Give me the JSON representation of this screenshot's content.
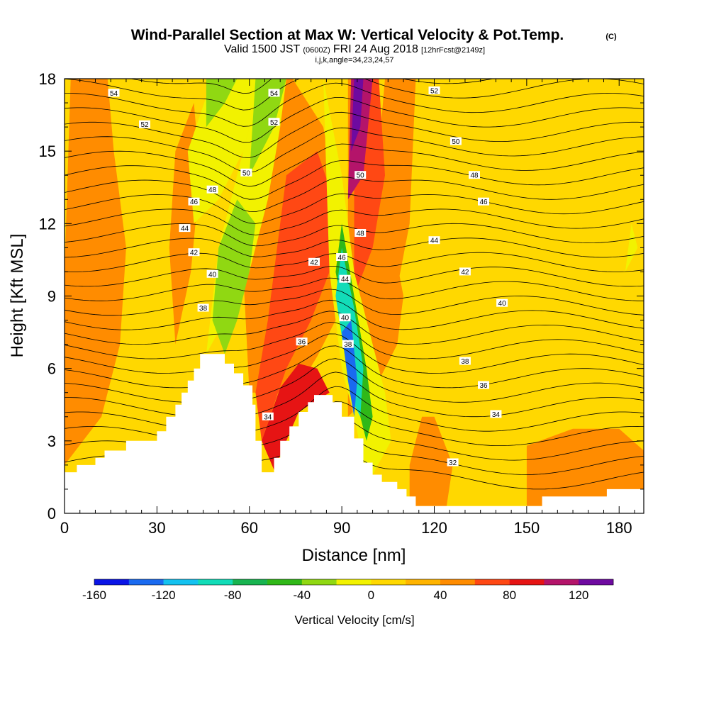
{
  "chart_data": {
    "type": "heatmap",
    "title": "Wind-Parallel Section at Max W: Vertical Velocity & Pot.Temp.",
    "title_mark": "(C)",
    "subtitle": {
      "prefix": "Valid 1500 JST",
      "utc": "(0600Z)",
      "date": "FRI 24 Aug 2018",
      "fcst": "[12hrFcst@2149z]"
    },
    "subtitle2": "i,j,k,angle=34,23,24,57",
    "xlabel": "Distance [nm]",
    "ylabel": "Height [Kft MSL]",
    "xlim": [
      0,
      188
    ],
    "ylim": [
      0,
      18
    ],
    "x_ticks": [
      0,
      30,
      60,
      90,
      120,
      150,
      180
    ],
    "y_ticks": [
      0,
      3,
      6,
      9,
      12,
      15,
      18
    ],
    "colorbar": {
      "label": "Vertical Velocity [cm/s]",
      "ticks": [
        "-160",
        "-120",
        "-80",
        "-40",
        "0",
        "40",
        "80",
        "120"
      ],
      "min": -160,
      "max": 140,
      "colors": [
        "#0a14e6",
        "#1a6af0",
        "#14c2f0",
        "#12dcb8",
        "#18b450",
        "#30b818",
        "#90d812",
        "#f2f200",
        "#ffd800",
        "#ffb400",
        "#ff8c00",
        "#ff4814",
        "#e61414",
        "#b4146a",
        "#6e0aa0"
      ]
    },
    "background_value": 8,
    "terrain": [
      [
        0,
        1.7
      ],
      [
        4,
        1.7
      ],
      [
        4,
        2
      ],
      [
        10,
        2
      ],
      [
        10,
        2.3
      ],
      [
        13,
        2.3
      ],
      [
        13,
        2.6
      ],
      [
        20,
        2.6
      ],
      [
        20,
        3
      ],
      [
        30,
        3
      ],
      [
        30,
        3.4
      ],
      [
        33,
        3.4
      ],
      [
        33,
        4
      ],
      [
        36,
        4
      ],
      [
        36,
        4.5
      ],
      [
        38,
        4.5
      ],
      [
        38,
        5
      ],
      [
        40,
        5
      ],
      [
        40,
        5.5
      ],
      [
        42,
        5.5
      ],
      [
        42,
        6
      ],
      [
        44,
        6
      ],
      [
        44,
        6.6
      ],
      [
        52,
        6.6
      ],
      [
        52,
        6.2
      ],
      [
        55,
        6.2
      ],
      [
        55,
        5.8
      ],
      [
        58,
        5.8
      ],
      [
        58,
        5.3
      ],
      [
        61,
        5.3
      ],
      [
        61,
        4.5
      ],
      [
        62,
        4.5
      ],
      [
        62,
        3
      ],
      [
        64,
        3
      ],
      [
        64,
        1.7
      ],
      [
        68,
        1.7
      ],
      [
        68,
        2.3
      ],
      [
        70,
        2.3
      ],
      [
        70,
        3
      ],
      [
        73,
        3
      ],
      [
        73,
        3.6
      ],
      [
        76,
        3.6
      ],
      [
        76,
        4.2
      ],
      [
        79,
        4.2
      ],
      [
        79,
        4.6
      ],
      [
        81,
        4.6
      ],
      [
        81,
        4.9
      ],
      [
        87,
        4.9
      ],
      [
        87,
        4.6
      ],
      [
        90,
        4.6
      ],
      [
        90,
        4
      ],
      [
        94,
        4
      ],
      [
        94,
        3.1
      ],
      [
        97,
        3.1
      ],
      [
        97,
        2.1
      ],
      [
        100,
        2.1
      ],
      [
        100,
        1.6
      ],
      [
        103,
        1.6
      ],
      [
        103,
        1.3
      ],
      [
        108,
        1.3
      ],
      [
        108,
        1
      ],
      [
        111,
        1
      ],
      [
        111,
        0.7
      ],
      [
        114,
        0.7
      ],
      [
        114,
        0.3
      ],
      [
        155,
        0.3
      ],
      [
        155,
        0.7
      ],
      [
        176,
        0.7
      ],
      [
        176,
        1
      ],
      [
        188,
        1
      ],
      [
        188,
        0
      ],
      [
        0,
        0
      ]
    ],
    "wbands": [
      {
        "value": 40,
        "poly": [
          [
            0,
            2
          ],
          [
            12,
            4
          ],
          [
            18,
            7
          ],
          [
            20,
            11
          ],
          [
            16,
            15
          ],
          [
            14,
            18
          ],
          [
            2,
            18
          ],
          [
            0,
            10
          ]
        ]
      },
      {
        "value": 40,
        "poly": [
          [
            36,
            7
          ],
          [
            41,
            10
          ],
          [
            44,
            14
          ],
          [
            42,
            17
          ],
          [
            36,
            15
          ],
          [
            34,
            11
          ]
        ]
      },
      {
        "value": 40,
        "poly": [
          [
            60,
            5
          ],
          [
            75,
            5
          ],
          [
            82,
            6.5
          ],
          [
            88,
            8
          ],
          [
            90,
            12
          ],
          [
            84,
            16
          ],
          [
            74,
            18
          ],
          [
            64,
            18
          ],
          [
            60,
            14
          ],
          [
            58,
            10
          ]
        ]
      },
      {
        "value": 40,
        "poly": [
          [
            92,
            4
          ],
          [
            100,
            5
          ],
          [
            108,
            7
          ],
          [
            110,
            9
          ],
          [
            104,
            13
          ],
          [
            100,
            18
          ],
          [
            92,
            18
          ]
        ]
      },
      {
        "value": 40,
        "poly": [
          [
            112,
            0.3
          ],
          [
            124,
            0.3
          ],
          [
            126,
            2
          ],
          [
            120,
            4
          ],
          [
            116,
            4
          ],
          [
            112,
            2
          ]
        ]
      },
      {
        "value": 40,
        "poly": [
          [
            150,
            0.3
          ],
          [
            188,
            0.3
          ],
          [
            188,
            2.6
          ],
          [
            180,
            3.5
          ],
          [
            165,
            3.5
          ],
          [
            150,
            2.8
          ]
        ]
      },
      {
        "value": 40,
        "poly": [
          [
            98,
            6
          ],
          [
            106,
            8
          ],
          [
            112,
            12
          ],
          [
            114,
            18
          ],
          [
            104,
            18
          ],
          [
            100,
            12
          ]
        ]
      },
      {
        "value": 60,
        "poly": [
          [
            64,
            3
          ],
          [
            72,
            6
          ],
          [
            80,
            8
          ],
          [
            86,
            10
          ],
          [
            90,
            12
          ],
          [
            82,
            15
          ],
          [
            72,
            14
          ],
          [
            66,
            8
          ],
          [
            62,
            5
          ]
        ]
      },
      {
        "value": 60,
        "poly": [
          [
            94,
            9
          ],
          [
            100,
            11
          ],
          [
            104,
            14
          ],
          [
            102,
            18
          ],
          [
            96,
            18
          ],
          [
            94,
            14
          ]
        ]
      },
      {
        "value": 80,
        "poly": [
          [
            64,
            3
          ],
          [
            70,
            5.2
          ],
          [
            76,
            6.2
          ],
          [
            82,
            6
          ],
          [
            86,
            5
          ],
          [
            81,
            4.6
          ],
          [
            76,
            4.2
          ],
          [
            72,
            3
          ],
          [
            68,
            1.8
          ]
        ]
      },
      {
        "value": 100,
        "poly": [
          [
            92,
            13
          ],
          [
            97,
            14
          ],
          [
            100,
            18
          ],
          [
            93,
            18
          ]
        ]
      },
      {
        "value": 130,
        "poly": [
          [
            93,
            15
          ],
          [
            96,
            16
          ],
          [
            97,
            18
          ],
          [
            94,
            18
          ]
        ]
      },
      {
        "value": -20,
        "poly": [
          [
            42,
            12
          ],
          [
            50,
            13
          ],
          [
            58,
            15
          ],
          [
            64,
            18
          ],
          [
            48,
            18
          ],
          [
            40,
            15
          ]
        ]
      },
      {
        "value": -20,
        "poly": [
          [
            46,
            6.6
          ],
          [
            52,
            8
          ],
          [
            60,
            10
          ],
          [
            66,
            13
          ],
          [
            70,
            16
          ],
          [
            72,
            18
          ],
          [
            64,
            18
          ],
          [
            56,
            14
          ],
          [
            50,
            11
          ]
        ]
      },
      {
        "value": -20,
        "poly": [
          [
            84,
            18
          ],
          [
            90,
            14
          ],
          [
            94,
            10
          ],
          [
            100,
            7
          ],
          [
            104,
            5
          ],
          [
            106,
            3
          ],
          [
            100,
            1.6
          ],
          [
            97,
            2.1
          ],
          [
            94,
            4
          ],
          [
            90,
            6
          ],
          [
            86,
            10
          ]
        ]
      },
      {
        "value": -20,
        "poly": [
          [
            182,
            10
          ],
          [
            184,
            12
          ],
          [
            186,
            11
          ]
        ]
      },
      {
        "value": -40,
        "poly": [
          [
            52,
            6.6
          ],
          [
            56,
            8
          ],
          [
            60,
            10
          ],
          [
            62,
            12
          ],
          [
            56,
            13
          ],
          [
            50,
            11
          ],
          [
            48,
            8
          ]
        ]
      },
      {
        "value": -40,
        "poly": [
          [
            46,
            16
          ],
          [
            52,
            17
          ],
          [
            56,
            18
          ],
          [
            46,
            18
          ]
        ]
      },
      {
        "value": -40,
        "poly": [
          [
            60,
            14
          ],
          [
            68,
            16
          ],
          [
            72,
            18
          ],
          [
            62,
            18
          ]
        ]
      },
      {
        "value": -60,
        "poly": [
          [
            88,
            10
          ],
          [
            92,
            7
          ],
          [
            96,
            4
          ],
          [
            98,
            3
          ],
          [
            100,
            4
          ],
          [
            98,
            6
          ],
          [
            94,
            9
          ],
          [
            90,
            12
          ]
        ]
      },
      {
        "value": -100,
        "poly": [
          [
            88,
            9
          ],
          [
            91,
            6.5
          ],
          [
            94,
            4.5
          ],
          [
            96,
            4
          ],
          [
            97,
            6
          ],
          [
            94,
            8.5
          ],
          [
            90,
            11
          ]
        ]
      },
      {
        "value": -140,
        "poly": [
          [
            90,
            7.5
          ],
          [
            92,
            5.5
          ],
          [
            94,
            4
          ],
          [
            95,
            5.5
          ],
          [
            93,
            8
          ]
        ]
      }
    ],
    "theta_labels": [
      {
        "text": "54",
        "x": 16,
        "y": 17.4
      },
      {
        "text": "52",
        "x": 26,
        "y": 16.1
      },
      {
        "text": "54",
        "x": 68,
        "y": 17.4
      },
      {
        "text": "52",
        "x": 68,
        "y": 16.2
      },
      {
        "text": "50",
        "x": 59,
        "y": 14.1
      },
      {
        "text": "48",
        "x": 48,
        "y": 13.4
      },
      {
        "text": "46",
        "x": 42,
        "y": 12.9
      },
      {
        "text": "44",
        "x": 39,
        "y": 11.8
      },
      {
        "text": "42",
        "x": 42,
        "y": 10.8
      },
      {
        "text": "40",
        "x": 48,
        "y": 9.9
      },
      {
        "text": "38",
        "x": 45,
        "y": 8.5
      },
      {
        "text": "36",
        "x": 77,
        "y": 7.1
      },
      {
        "text": "34",
        "x": 66,
        "y": 4
      },
      {
        "text": "42",
        "x": 81,
        "y": 10.4
      },
      {
        "text": "46",
        "x": 90,
        "y": 10.6
      },
      {
        "text": "44",
        "x": 91,
        "y": 9.7
      },
      {
        "text": "40",
        "x": 91,
        "y": 8.1
      },
      {
        "text": "38",
        "x": 92,
        "y": 7
      },
      {
        "text": "50",
        "x": 96,
        "y": 14
      },
      {
        "text": "48",
        "x": 96,
        "y": 11.6
      },
      {
        "text": "52",
        "x": 120,
        "y": 17.5
      },
      {
        "text": "50",
        "x": 127,
        "y": 15.4
      },
      {
        "text": "48",
        "x": 133,
        "y": 14
      },
      {
        "text": "46",
        "x": 136,
        "y": 12.9
      },
      {
        "text": "44",
        "x": 120,
        "y": 11.3
      },
      {
        "text": "42",
        "x": 130,
        "y": 10
      },
      {
        "text": "40",
        "x": 142,
        "y": 8.7
      },
      {
        "text": "38",
        "x": 130,
        "y": 6.3
      },
      {
        "text": "36",
        "x": 136,
        "y": 5.3
      },
      {
        "text": "34",
        "x": 140,
        "y": 4.1
      },
      {
        "text": "32",
        "x": 126,
        "y": 2.1
      }
    ]
  }
}
